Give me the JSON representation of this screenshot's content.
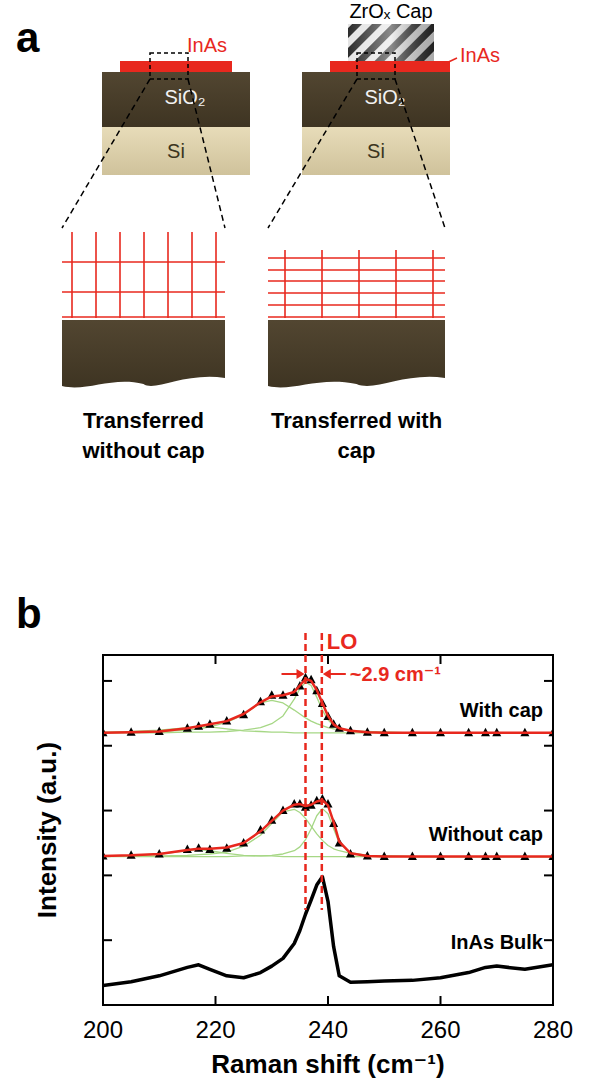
{
  "diagram": {
    "letter": "a",
    "stacks": [
      {
        "film": "InAs",
        "oxide": "SiO₂",
        "substrate": "Si",
        "caption": "Transferred without cap"
      },
      {
        "cap": "ZrOₓ Cap",
        "film": "InAs",
        "oxide": "SiO₂",
        "substrate": "Si",
        "caption": "Transferred with cap"
      }
    ]
  },
  "chart_data": {
    "type": "line",
    "letter": "b",
    "x_label": "Raman shift (cm⁻¹)",
    "y_label": "Intensity (a.u.)",
    "x": [
      200,
      205,
      210,
      215,
      217,
      219,
      222,
      225,
      228,
      230,
      232,
      234,
      235,
      236,
      237,
      238,
      239,
      240,
      241,
      242,
      244,
      247,
      250,
      255,
      260,
      265,
      268,
      270,
      275,
      280
    ],
    "xlim": [
      200,
      280
    ],
    "xticks": [
      200,
      220,
      240,
      260,
      280
    ],
    "ylim": [
      0,
      5.4
    ],
    "yticks": [
      1,
      2,
      3,
      4,
      5
    ],
    "tick_labels": "x",
    "vlines": [
      236.0,
      238.9
    ],
    "annotations": [
      {
        "text": "LO"
      },
      {
        "text": "~2.9 cm⁻¹"
      }
    ],
    "series": [
      {
        "name": "With cap",
        "type": "scatter",
        "marker": "triangle",
        "color": "#000000",
        "values": [
          4.2,
          4.21,
          4.22,
          4.27,
          4.3,
          4.33,
          4.38,
          4.48,
          4.68,
          4.78,
          4.78,
          4.82,
          4.92,
          5.05,
          5.02,
          4.85,
          4.65,
          4.45,
          4.33,
          4.27,
          4.23,
          4.21,
          4.2,
          4.2,
          4.2,
          4.2,
          4.2,
          4.2,
          4.2,
          4.2
        ]
      },
      {
        "type": "line",
        "color": "#e8281e",
        "values": [
          4.2,
          4.21,
          4.22,
          4.27,
          4.3,
          4.33,
          4.38,
          4.49,
          4.67,
          4.76,
          4.78,
          4.83,
          4.93,
          5.03,
          5.0,
          4.86,
          4.66,
          4.46,
          4.33,
          4.27,
          4.23,
          4.21,
          4.2,
          4.2,
          4.2,
          4.2,
          4.2,
          4.2,
          4.2,
          4.2
        ]
      },
      {
        "type": "line",
        "color": "#a6d785",
        "values": [
          4.21,
          4.22,
          4.24,
          4.28,
          4.3,
          4.29,
          4.26,
          4.23,
          4.22,
          4.21,
          4.21,
          4.2,
          4.2,
          4.2,
          4.2,
          4.2,
          4.2,
          4.2,
          4.2,
          4.2,
          4.2,
          4.2,
          4.2,
          4.2,
          4.2,
          4.2,
          4.2,
          4.2,
          4.2,
          4.2
        ]
      },
      {
        "type": "line",
        "color": "#a6d785",
        "values": [
          4.2,
          4.21,
          4.22,
          4.24,
          4.26,
          4.29,
          4.36,
          4.48,
          4.66,
          4.7,
          4.66,
          4.55,
          4.49,
          4.43,
          4.38,
          4.34,
          4.31,
          4.28,
          4.26,
          4.25,
          4.23,
          4.22,
          4.21,
          4.2,
          4.2,
          4.2,
          4.2,
          4.2,
          4.2,
          4.2
        ]
      },
      {
        "type": "line",
        "color": "#a6d785",
        "values": [
          4.2,
          4.2,
          4.2,
          4.21,
          4.21,
          4.21,
          4.22,
          4.24,
          4.28,
          4.34,
          4.46,
          4.72,
          4.88,
          4.98,
          4.93,
          4.75,
          4.55,
          4.4,
          4.31,
          4.26,
          4.23,
          4.21,
          4.21,
          4.2,
          4.2,
          4.2,
          4.2,
          4.2,
          4.2,
          4.2
        ]
      },
      {
        "name": "Without cap",
        "type": "scatter",
        "marker": "triangle",
        "color": "#000000",
        "values": [
          2.3,
          2.31,
          2.33,
          2.4,
          2.42,
          2.4,
          2.42,
          2.5,
          2.7,
          2.85,
          3.0,
          3.1,
          3.1,
          3.05,
          3.08,
          3.15,
          3.18,
          3.1,
          2.8,
          2.5,
          2.33,
          2.3,
          2.29,
          2.29,
          2.29,
          2.29,
          2.29,
          2.29,
          2.29,
          2.29
        ]
      },
      {
        "type": "line",
        "color": "#e8281e",
        "values": [
          2.3,
          2.31,
          2.33,
          2.39,
          2.41,
          2.41,
          2.43,
          2.5,
          2.68,
          2.84,
          3.0,
          3.09,
          3.1,
          3.07,
          3.09,
          3.14,
          3.16,
          3.08,
          2.82,
          2.52,
          2.34,
          2.3,
          2.29,
          2.29,
          2.29,
          2.29,
          2.29,
          2.29,
          2.29,
          2.29
        ]
      },
      {
        "type": "line",
        "color": "#a6d785",
        "values": [
          2.3,
          2.31,
          2.33,
          2.38,
          2.4,
          2.38,
          2.34,
          2.31,
          2.3,
          2.3,
          2.29,
          2.29,
          2.29,
          2.29,
          2.29,
          2.29,
          2.29,
          2.29,
          2.29,
          2.29,
          2.29,
          2.29,
          2.29,
          2.29,
          2.29,
          2.29,
          2.29,
          2.29,
          2.29,
          2.29
        ]
      },
      {
        "type": "line",
        "color": "#a6d785",
        "values": [
          2.29,
          2.3,
          2.3,
          2.31,
          2.32,
          2.33,
          2.36,
          2.45,
          2.62,
          2.8,
          2.98,
          3.02,
          2.97,
          2.88,
          2.76,
          2.64,
          2.54,
          2.46,
          2.41,
          2.38,
          2.34,
          2.31,
          2.3,
          2.29,
          2.29,
          2.29,
          2.29,
          2.29,
          2.29,
          2.29
        ]
      },
      {
        "type": "line",
        "color": "#a6d785",
        "values": [
          2.29,
          2.29,
          2.29,
          2.29,
          2.29,
          2.29,
          2.29,
          2.3,
          2.3,
          2.31,
          2.33,
          2.38,
          2.44,
          2.55,
          2.72,
          2.92,
          3.03,
          2.95,
          2.72,
          2.5,
          2.35,
          2.31,
          2.3,
          2.29,
          2.29,
          2.29,
          2.29,
          2.29,
          2.29,
          2.29
        ]
      },
      {
        "name": "InAs Bulk",
        "type": "line",
        "color": "#000000",
        "values": [
          0.3,
          0.36,
          0.45,
          0.58,
          0.62,
          0.55,
          0.45,
          0.42,
          0.5,
          0.6,
          0.72,
          0.95,
          1.15,
          1.4,
          1.62,
          1.85,
          1.98,
          1.6,
          0.9,
          0.45,
          0.35,
          0.36,
          0.37,
          0.38,
          0.42,
          0.5,
          0.58,
          0.6,
          0.55,
          0.62
        ]
      }
    ]
  }
}
